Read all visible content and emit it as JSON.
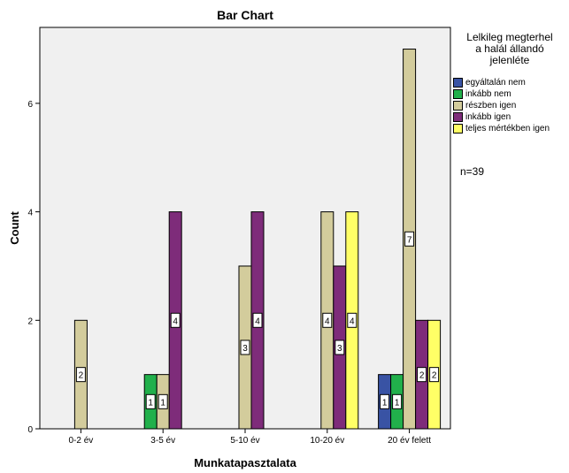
{
  "chart_data": {
    "type": "bar",
    "title": "Bar Chart",
    "xlabel": "Munkatapasztalata",
    "ylabel": "Count",
    "categories": [
      "0-2 év",
      "3-5 év",
      "5-10 év",
      "10-20 év",
      "20 év felett"
    ],
    "series": [
      {
        "name": "egyáltalán nem",
        "color": "#3953a4",
        "values": [
          0,
          0,
          0,
          0,
          1
        ]
      },
      {
        "name": "inkább nem",
        "color": "#21b04b",
        "values": [
          0,
          1,
          0,
          0,
          1
        ]
      },
      {
        "name": "részben igen",
        "color": "#d3cc9c",
        "values": [
          2,
          1,
          3,
          4,
          7
        ]
      },
      {
        "name": "inkább igen",
        "color": "#7e2c7a",
        "values": [
          0,
          4,
          4,
          3,
          2
        ]
      },
      {
        "name": "teljes mértékben igen",
        "color": "#ffff66",
        "values": [
          0,
          0,
          0,
          4,
          2
        ]
      }
    ],
    "ylim": [
      0,
      7.4
    ],
    "yticks": [
      0,
      2,
      4,
      6
    ],
    "grid": false,
    "data_labels": true,
    "plot_background": "#f0f0f0",
    "legend": {
      "title": "Lelkileg megterhel a halál állandó jelenléte",
      "title_lines": [
        "Lelkileg megterhel",
        "a halál állandó",
        "jelenléte"
      ],
      "placement": "right"
    },
    "annotation": "n=39"
  }
}
